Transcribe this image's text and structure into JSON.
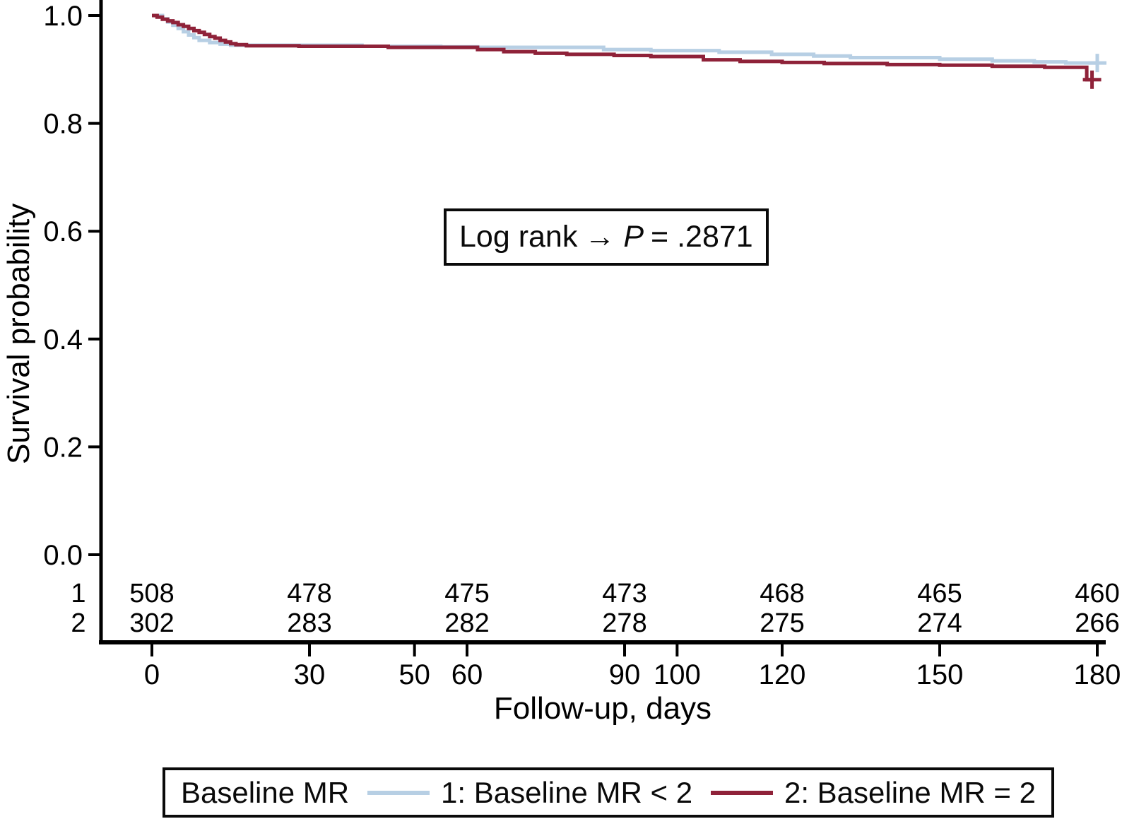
{
  "figure": {
    "background": "#ffffff",
    "text_color": "#000000"
  },
  "annotation_box": {
    "prefix": "Log rank",
    "arrow": "→",
    "pvar": "P",
    "suffix": "= .2871",
    "full_text": "Log rank → P = .2871"
  },
  "legend": {
    "title": "Baseline MR",
    "position": "bottom"
  },
  "chart_data": {
    "type": "line",
    "subtype": "kaplan-meier-step",
    "title": "",
    "xlabel": "Follow-up, days",
    "ylabel": "Survival probability",
    "xlim": [
      0,
      180
    ],
    "ylim": [
      0.0,
      1.0
    ],
    "xticks": [
      0,
      30,
      50,
      60,
      90,
      100,
      120,
      150,
      180
    ],
    "yticks": [
      "1.0",
      "0.8",
      "0.6",
      "0.4",
      "0.2",
      "0.0"
    ],
    "grid": false,
    "legend_position": "bottom",
    "series": [
      {
        "name": "1: Baseline MR < 2",
        "group": "1",
        "color": "#b7cfe4",
        "steps": [
          [
            0,
            1.0
          ],
          [
            2,
            0.994
          ],
          [
            3,
            0.988
          ],
          [
            4,
            0.982
          ],
          [
            5,
            0.976
          ],
          [
            6,
            0.97
          ],
          [
            7,
            0.964
          ],
          [
            8,
            0.959
          ],
          [
            9,
            0.954
          ],
          [
            11,
            0.95
          ],
          [
            13,
            0.947
          ],
          [
            15,
            0.945
          ],
          [
            40,
            0.943
          ],
          [
            55,
            0.942
          ],
          [
            62,
            0.941
          ],
          [
            86,
            0.937
          ],
          [
            95,
            0.935
          ],
          [
            108,
            0.932
          ],
          [
            118,
            0.928
          ],
          [
            126,
            0.925
          ],
          [
            133,
            0.922
          ],
          [
            150,
            0.919
          ],
          [
            160,
            0.916
          ],
          [
            168,
            0.914
          ],
          [
            174,
            0.912
          ],
          [
            180,
            0.912
          ]
        ],
        "censors": [
          [
            180,
            0.912
          ]
        ]
      },
      {
        "name": "2: Baseline MR = 2",
        "group": "2",
        "color": "#8f2239",
        "steps": [
          [
            0,
            1.0
          ],
          [
            1,
            0.997
          ],
          [
            2,
            0.993
          ],
          [
            3,
            0.99
          ],
          [
            4,
            0.987
          ],
          [
            5,
            0.983
          ],
          [
            6,
            0.98
          ],
          [
            7,
            0.976
          ],
          [
            8,
            0.972
          ],
          [
            9,
            0.969
          ],
          [
            10,
            0.965
          ],
          [
            11,
            0.961
          ],
          [
            12,
            0.958
          ],
          [
            13,
            0.954
          ],
          [
            14,
            0.951
          ],
          [
            15,
            0.948
          ],
          [
            16,
            0.946
          ],
          [
            18,
            0.944
          ],
          [
            28,
            0.943
          ],
          [
            45,
            0.941
          ],
          [
            62,
            0.937
          ],
          [
            67,
            0.933
          ],
          [
            73,
            0.93
          ],
          [
            79,
            0.928
          ],
          [
            88,
            0.926
          ],
          [
            95,
            0.924
          ],
          [
            105,
            0.918
          ],
          [
            112,
            0.915
          ],
          [
            120,
            0.913
          ],
          [
            128,
            0.911
          ],
          [
            140,
            0.909
          ],
          [
            150,
            0.908
          ],
          [
            160,
            0.906
          ],
          [
            170,
            0.904
          ],
          [
            178,
            0.881
          ],
          [
            179,
            0.881
          ]
        ],
        "censors": [
          [
            179,
            0.881
          ]
        ]
      }
    ],
    "risk_table": {
      "columns": [
        0,
        30,
        60,
        90,
        120,
        150,
        180
      ],
      "rows": [
        {
          "label": "1",
          "color": "#47669f",
          "values": [
            "508",
            "478",
            "475",
            "473",
            "468",
            "465",
            "460"
          ]
        },
        {
          "label": "2",
          "color": "#a8423e",
          "values": [
            "302",
            "283",
            "282",
            "278",
            "275",
            "274",
            "266"
          ]
        }
      ]
    }
  }
}
